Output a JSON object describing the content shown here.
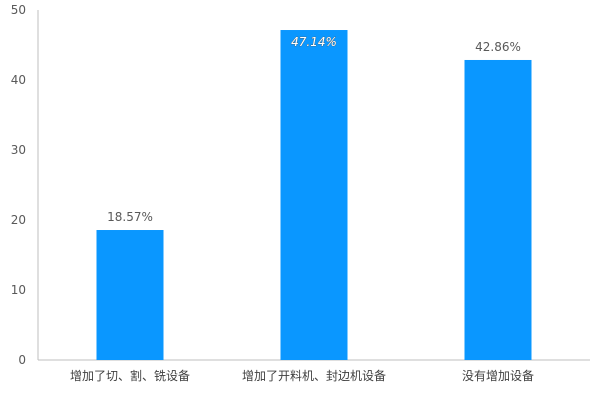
{
  "chart_data": {
    "type": "bar",
    "categories": [
      "增加了切、割、铣设备",
      "增加了开料机、封边机设备",
      "没有增加设备"
    ],
    "values": [
      18.57,
      47.14,
      42.86
    ],
    "data_labels": [
      "18.57%",
      "47.14%",
      "42.86%"
    ],
    "title": "",
    "xlabel": "",
    "ylabel": "",
    "ylim": [
      0,
      50
    ],
    "y_ticks": [
      0,
      10,
      20,
      30,
      40,
      50
    ],
    "grid": false,
    "legend": "none",
    "colors": {
      "bar": "#0A97FF",
      "axis": "#BFBFBF"
    }
  }
}
